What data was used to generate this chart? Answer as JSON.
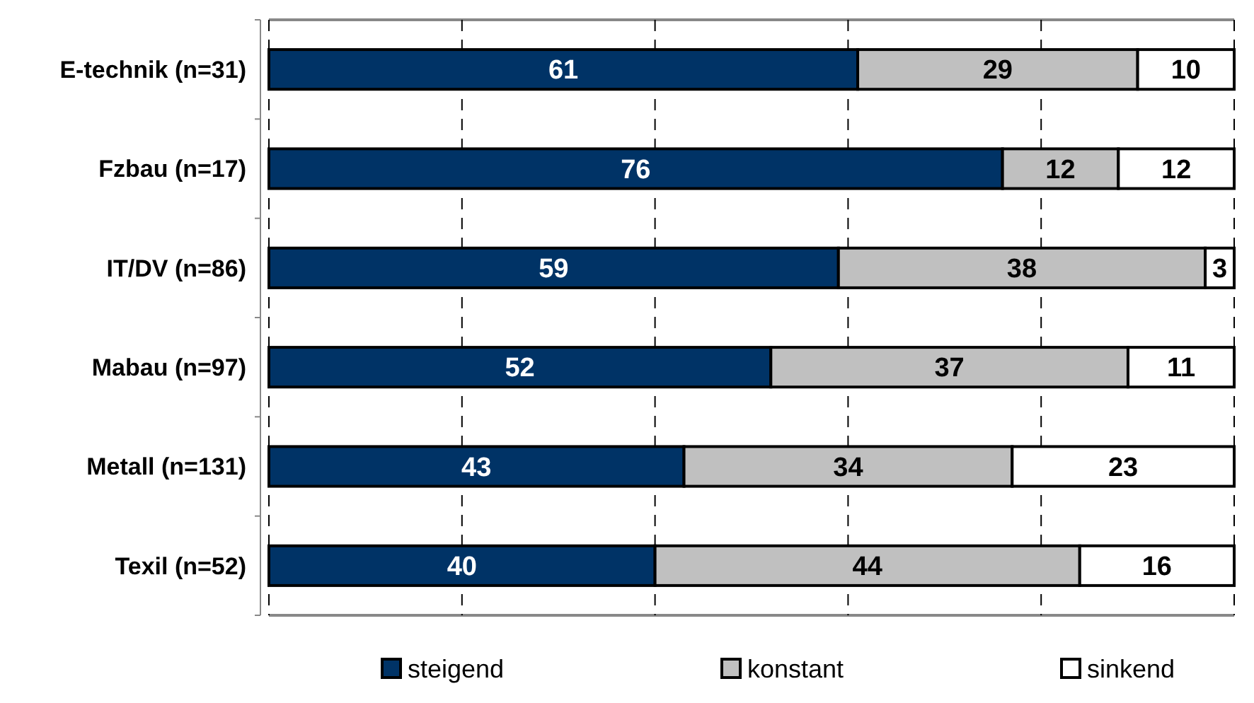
{
  "chart_data": {
    "type": "bar",
    "orientation": "horizontal",
    "stacked": true,
    "categories": [
      "E-technik (n=31)",
      "Fzbau (n=17)",
      "IT/DV (n=86)",
      "Mabau (n=97)",
      "Metall (n=131)",
      "Texil (n=52)"
    ],
    "series": [
      {
        "name": "steigend",
        "color": "#003366",
        "values": [
          61,
          76,
          59,
          52,
          43,
          40
        ]
      },
      {
        "name": "konstant",
        "color": "#c0c0c0",
        "values": [
          29,
          12,
          38,
          37,
          34,
          44
        ]
      },
      {
        "name": "sinkend",
        "color": "#ffffff",
        "values": [
          10,
          12,
          3,
          11,
          23,
          16
        ]
      }
    ],
    "xlim": [
      0,
      100
    ],
    "xticks": [
      {
        "value": 0,
        "label": null
      },
      {
        "value": 20,
        "label": null
      },
      {
        "value": 40,
        "label": null
      },
      {
        "value": 60,
        "label": null
      },
      {
        "value": 80,
        "label": null
      },
      {
        "value": 100,
        "label": null
      }
    ],
    "tick_labels": "y",
    "grid": "x",
    "data_labels": true,
    "legend": "bottom"
  }
}
